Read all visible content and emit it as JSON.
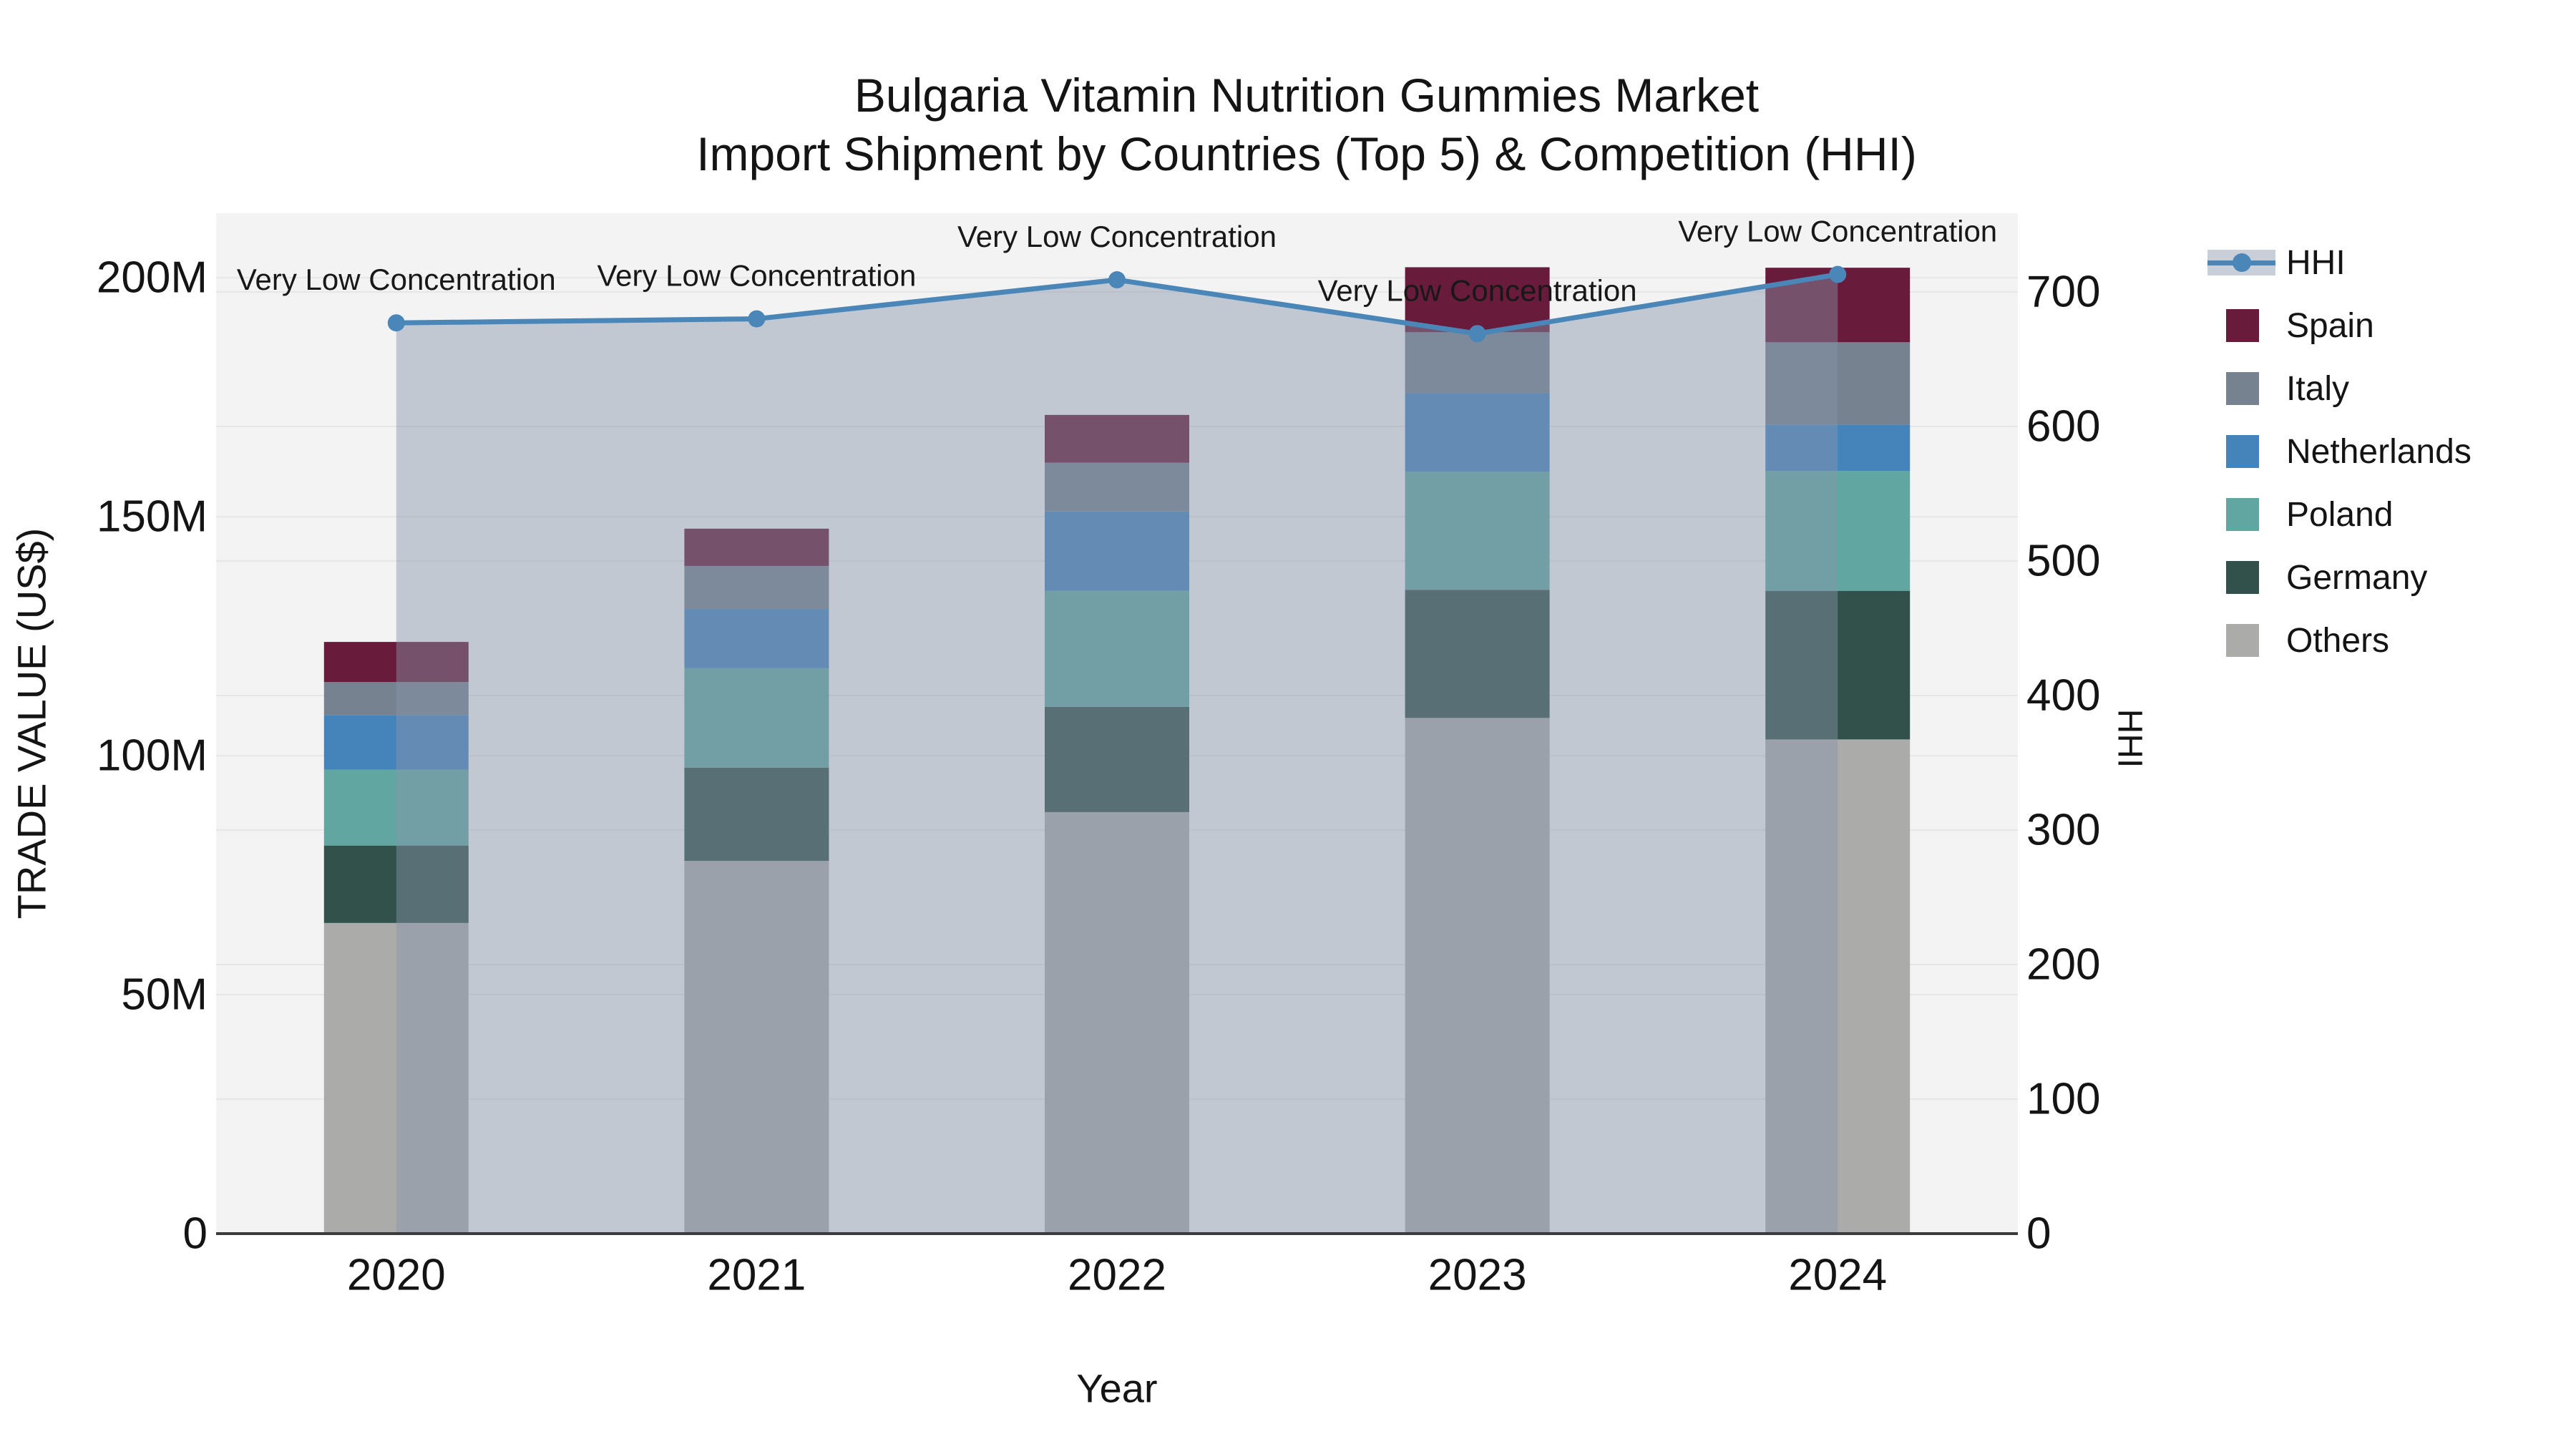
{
  "title": {
    "line1": "Bulgaria Vitamin Nutrition Gummies Market",
    "line2": "Import Shipment by Countries (Top 5) & Competition (HHI)"
  },
  "chart_data": {
    "type": "bar",
    "stacked": true,
    "subtype": "stacked-bar-with-line-overlay",
    "categories": [
      "2020",
      "2021",
      "2022",
      "2023",
      "2024"
    ],
    "xlabel": "Year",
    "ylabel_left": "TRADE VALUE (US$)",
    "ylabel_right": "HHI",
    "yticks_left": {
      "values": [
        0,
        50,
        100,
        150,
        200
      ],
      "labels": [
        "0",
        "50M",
        "100M",
        "150M",
        "200M"
      ]
    },
    "yticks_right": {
      "values": [
        0,
        100,
        200,
        300,
        400,
        500,
        600,
        700
      ],
      "labels": [
        "0",
        "100",
        "200",
        "300",
        "400",
        "500",
        "600",
        "700"
      ]
    },
    "ylim_left_millions": [
      0,
      213.5
    ],
    "ylim_right": [
      0,
      758.5
    ],
    "grid": true,
    "legend_position": "right",
    "series": [
      {
        "name": "Others",
        "color": "#ABACAA",
        "values_millions": [
          65.0,
          78.0,
          88.2,
          107.9,
          103.4
        ]
      },
      {
        "name": "Germany",
        "color": "#32514B",
        "values_millions": [
          16.2,
          19.5,
          22.0,
          26.8,
          31.1
        ]
      },
      {
        "name": "Poland",
        "color": "#61A6A1",
        "values_millions": [
          15.9,
          20.8,
          24.3,
          24.7,
          25.1
        ]
      },
      {
        "name": "Netherlands",
        "color": "#4583BB",
        "values_millions": [
          11.4,
          12.4,
          16.6,
          16.5,
          9.7
        ]
      },
      {
        "name": "Italy",
        "color": "#76828F",
        "values_millions": [
          6.9,
          9.0,
          10.2,
          12.7,
          17.2
        ]
      },
      {
        "name": "Spain",
        "color": "#681B3A",
        "values_millions": [
          8.4,
          7.8,
          10.0,
          13.6,
          15.6
        ]
      }
    ],
    "totals_millions": [
      123.8,
      147.5,
      171.3,
      202.2,
      202.1
    ],
    "line_series": {
      "name": "HHI",
      "color": "#4A86B8",
      "area_fill": "rgba(135,149,171,0.45)",
      "values": [
        677,
        680,
        709,
        669,
        713
      ]
    },
    "annotations": [
      "Very Low Concentration",
      "Very Low Concentration",
      "Very Low Concentration",
      "Very Low Concentration",
      "Very Low Concentration"
    ],
    "legend": {
      "items": [
        {
          "label": "HHI",
          "type": "line",
          "color": "#4A86B8",
          "band_color": "#C9CFD8"
        },
        {
          "label": "Spain",
          "type": "swatch",
          "color": "#681B3A"
        },
        {
          "label": "Italy",
          "type": "swatch",
          "color": "#76828F"
        },
        {
          "label": "Netherlands",
          "type": "swatch",
          "color": "#4583BB"
        },
        {
          "label": "Poland",
          "type": "swatch",
          "color": "#61A6A1"
        },
        {
          "label": "Germany",
          "type": "swatch",
          "color": "#32514B"
        },
        {
          "label": "Others",
          "type": "swatch",
          "color": "#ABACAA"
        }
      ]
    },
    "colors": {
      "plot_background": "#F2F3F2",
      "gridline": "#E6E6E6",
      "axis_line": "#3B3B3B",
      "text": "#141414"
    }
  }
}
